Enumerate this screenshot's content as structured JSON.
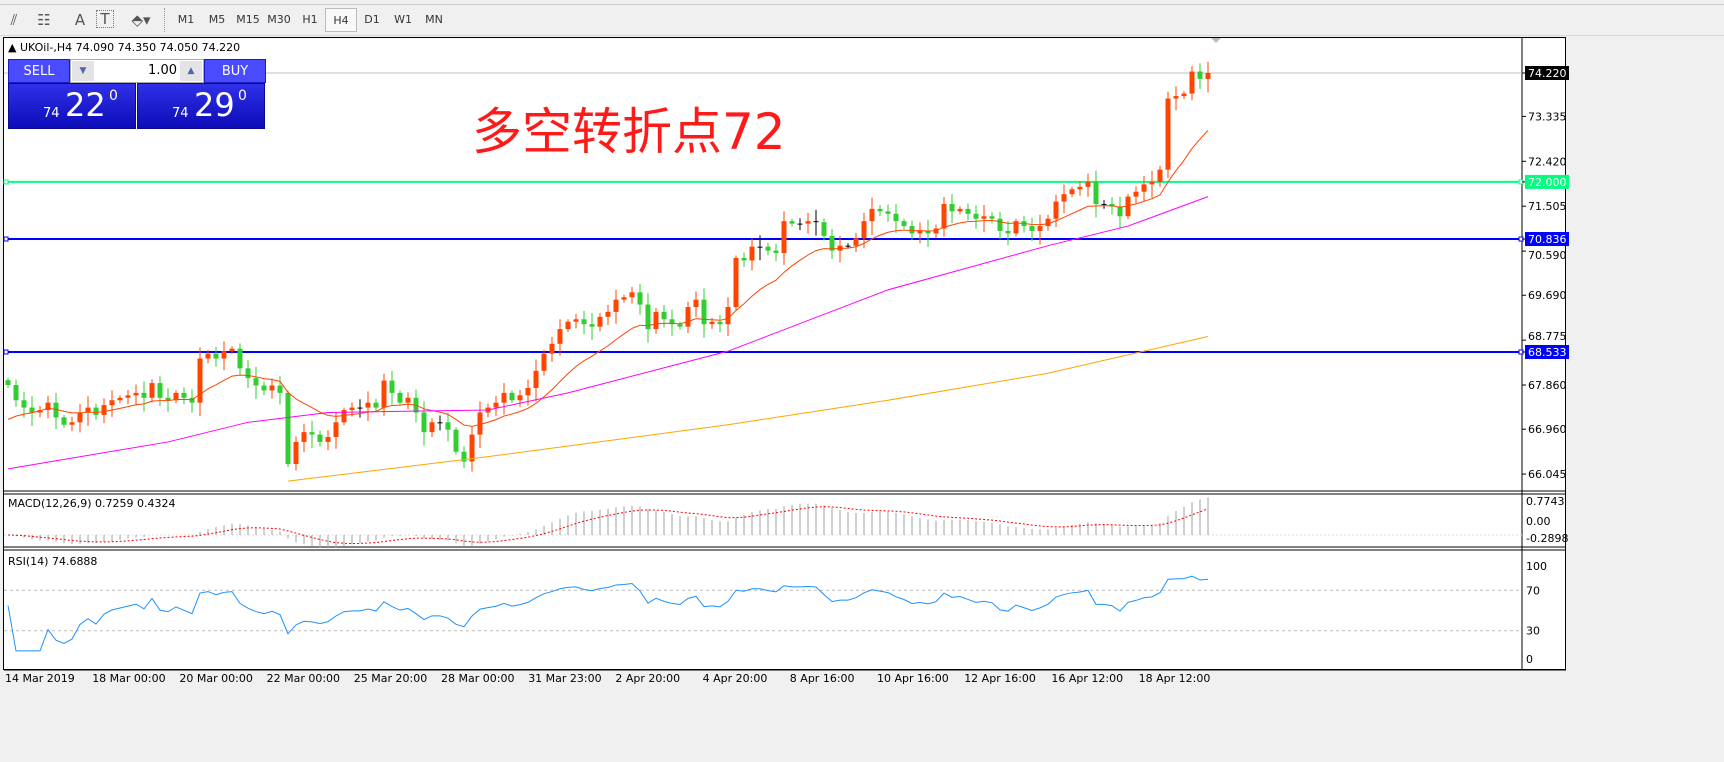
{
  "toolbar": {
    "icons": [
      "fibonacci-expansion-icon",
      "fibonacci-fan-icon",
      "text-label-icon",
      "text-box-icon",
      "arrows-icon"
    ],
    "text_icon": "A",
    "textbox_icon": "T",
    "timeframes": [
      "M1",
      "M5",
      "M15",
      "M30",
      "H1",
      "H4",
      "D1",
      "W1",
      "MN"
    ],
    "active": "H4"
  },
  "chart": {
    "title": "UKOil-,H4  74.090 74.350 74.050 74.220",
    "watermark": "多空转折点72"
  },
  "trade": {
    "sell": "SELL",
    "buy": "BUY",
    "lot": "1.00",
    "sell_prefix": "74",
    "sell_big": "22",
    "sell_sup": "0",
    "buy_prefix": "74",
    "buy_big": "29",
    "buy_sup": "0"
  },
  "colors": {
    "bull": "#ff4500",
    "bear": "#32cd32",
    "hline_green": "#00ff7f",
    "hline_blue": "#0000ff",
    "ma_fast": "#ff4500",
    "ma_mid": "#ff00ff",
    "ma_long": "#ffa500",
    "rsi": "#1e90ff",
    "macd_signal": "#ff0000"
  },
  "chart_data": {
    "type": "candlestick",
    "symbol": "UKOil-",
    "timeframe": "H4",
    "closes": [
      67.86,
      67.55,
      67.4,
      67.3,
      67.35,
      67.5,
      67.2,
      67.05,
      67.1,
      67.3,
      67.4,
      67.25,
      67.45,
      67.55,
      67.6,
      67.65,
      67.7,
      67.6,
      67.9,
      67.6,
      67.55,
      67.7,
      67.6,
      67.5,
      68.4,
      68.5,
      68.4,
      68.55,
      68.6,
      68.2,
      68.0,
      67.85,
      67.75,
      67.85,
      67.7,
      66.25,
      66.7,
      66.9,
      66.85,
      66.7,
      66.8,
      67.1,
      67.35,
      67.4,
      67.4,
      67.5,
      67.4,
      67.95,
      67.7,
      67.5,
      67.6,
      67.3,
      66.9,
      67.1,
      67.1,
      66.95,
      66.5,
      66.3,
      66.85,
      67.3,
      67.4,
      67.5,
      67.7,
      67.55,
      67.65,
      67.8,
      68.15,
      68.5,
      68.7,
      69.0,
      69.15,
      69.2,
      69.1,
      69.05,
      69.25,
      69.35,
      69.6,
      69.65,
      69.75,
      69.5,
      69.0,
      69.35,
      69.2,
      69.1,
      69.05,
      69.45,
      69.6,
      69.1,
      69.15,
      69.1,
      69.45,
      70.45,
      70.4,
      70.68,
      70.68,
      70.6,
      70.55,
      71.2,
      71.15,
      71.15,
      71.2,
      71.18,
      70.9,
      70.6,
      70.7,
      70.7,
      70.85,
      71.2,
      71.45,
      71.4,
      71.35,
      71.2,
      71.1,
      70.95,
      71.0,
      70.95,
      71.05,
      71.55,
      71.4,
      71.45,
      71.35,
      71.25,
      71.3,
      71.25,
      71.0,
      70.95,
      71.2,
      71.1,
      71.0,
      71.1,
      71.25,
      71.6,
      71.75,
      71.85,
      71.9,
      72.0,
      71.55,
      71.55,
      71.5,
      71.3,
      71.7,
      71.8,
      71.95,
      72.0,
      72.25,
      73.7,
      73.75,
      73.8,
      74.25,
      74.1,
      74.22
    ],
    "ma_mid": [
      [
        0,
        66.15
      ],
      [
        20,
        66.7
      ],
      [
        30,
        67.1
      ],
      [
        40,
        67.3
      ],
      [
        60,
        67.35
      ],
      [
        70,
        67.7
      ],
      [
        90,
        68.55
      ],
      [
        110,
        69.8
      ],
      [
        130,
        70.7
      ],
      [
        140,
        71.1
      ],
      [
        150,
        71.7
      ]
    ],
    "ma_long": [
      [
        35,
        65.9
      ],
      [
        60,
        66.4
      ],
      [
        90,
        67.05
      ],
      [
        110,
        67.55
      ],
      [
        130,
        68.1
      ],
      [
        150,
        68.85
      ]
    ],
    "price_ticks": [
      "74.220",
      "73.335",
      "72.420",
      "72.000",
      "71.505",
      "70.836",
      "70.590",
      "69.690",
      "68.775",
      "68.533",
      "67.860",
      "66.960",
      "66.045"
    ],
    "hlines": [
      {
        "price": "72.000",
        "color": "green"
      },
      {
        "price": "70.836",
        "color": "blue"
      },
      {
        "price": "68.533",
        "color": "blue"
      }
    ],
    "dates": [
      "14 Mar 2019",
      "18 Mar 00:00",
      "20 Mar 00:00",
      "22 Mar 00:00",
      "25 Mar 20:00",
      "28 Mar 00:00",
      "31 Mar 23:00",
      "2 Apr 20:00",
      "4 Apr 20:00",
      "8 Apr 16:00",
      "10 Apr 16:00",
      "12 Apr 16:00",
      "16 Apr 12:00",
      "18 Apr 12:00"
    ],
    "macd": {
      "label": "MACD(12,26,9) 0.7259 0.4324",
      "ticks": [
        "0.7743",
        "0.00",
        "-0.2898"
      ]
    },
    "rsi": {
      "label": "RSI(14) 74.6888",
      "ticks": [
        "100",
        "70",
        "30",
        "0"
      ]
    }
  }
}
